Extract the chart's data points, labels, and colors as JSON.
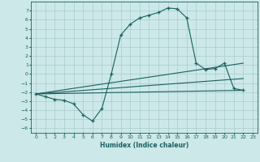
{
  "xlabel": "Humidex (Indice chaleur)",
  "bg_color": "#cce8e8",
  "grid_color": "#aacccc",
  "line_color": "#1a6060",
  "xlim": [
    -0.5,
    23.5
  ],
  "ylim": [
    -6.5,
    8.0
  ],
  "xticks": [
    0,
    1,
    2,
    3,
    4,
    5,
    6,
    7,
    8,
    9,
    10,
    11,
    12,
    13,
    14,
    15,
    16,
    17,
    18,
    19,
    20,
    21,
    22,
    23
  ],
  "yticks": [
    -6,
    -5,
    -4,
    -3,
    -2,
    -1,
    0,
    1,
    2,
    3,
    4,
    5,
    6,
    7
  ],
  "curve_x": [
    0,
    1,
    2,
    3,
    4,
    5,
    6,
    7,
    8,
    9,
    10,
    11,
    12,
    13,
    14,
    15,
    16,
    17,
    18,
    19,
    20,
    21,
    22
  ],
  "curve_y": [
    -2.2,
    -2.5,
    -2.8,
    -2.9,
    -3.3,
    -4.5,
    -5.2,
    -3.8,
    0.0,
    4.3,
    5.5,
    6.2,
    6.5,
    6.8,
    7.3,
    7.2,
    6.2,
    1.2,
    0.5,
    0.6,
    1.2,
    -1.6,
    -1.8
  ],
  "line1_x": [
    0,
    22
  ],
  "line1_y": [
    -2.2,
    -1.8
  ],
  "line2_x": [
    0,
    22
  ],
  "line2_y": [
    -2.2,
    -0.5
  ],
  "line3_x": [
    0,
    22
  ],
  "line3_y": [
    -2.2,
    1.2
  ]
}
